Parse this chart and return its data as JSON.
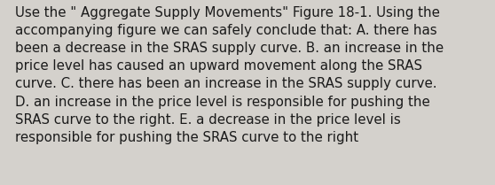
{
  "lines": [
    "Use the \" Aggregate Supply Movements\" Figure 18-1. Using the",
    "accompanying figure we can safely conclude that: A. there has",
    "been a decrease in the SRAS supply curve. B. an increase in the",
    "price level has caused an upward movement along the SRAS",
    "curve. C. there has been an increase in the SRAS supply curve.",
    "D. an increase in the price level is responsible for pushing the",
    "SRAS curve to the right. E. a decrease in the price level is",
    "responsible for pushing the SRAS curve to the right"
  ],
  "background_color": "#d4d1cc",
  "text_color": "#1a1a1a",
  "font_size": 10.8,
  "figwidth": 5.58,
  "figheight": 2.09,
  "dpi": 100
}
